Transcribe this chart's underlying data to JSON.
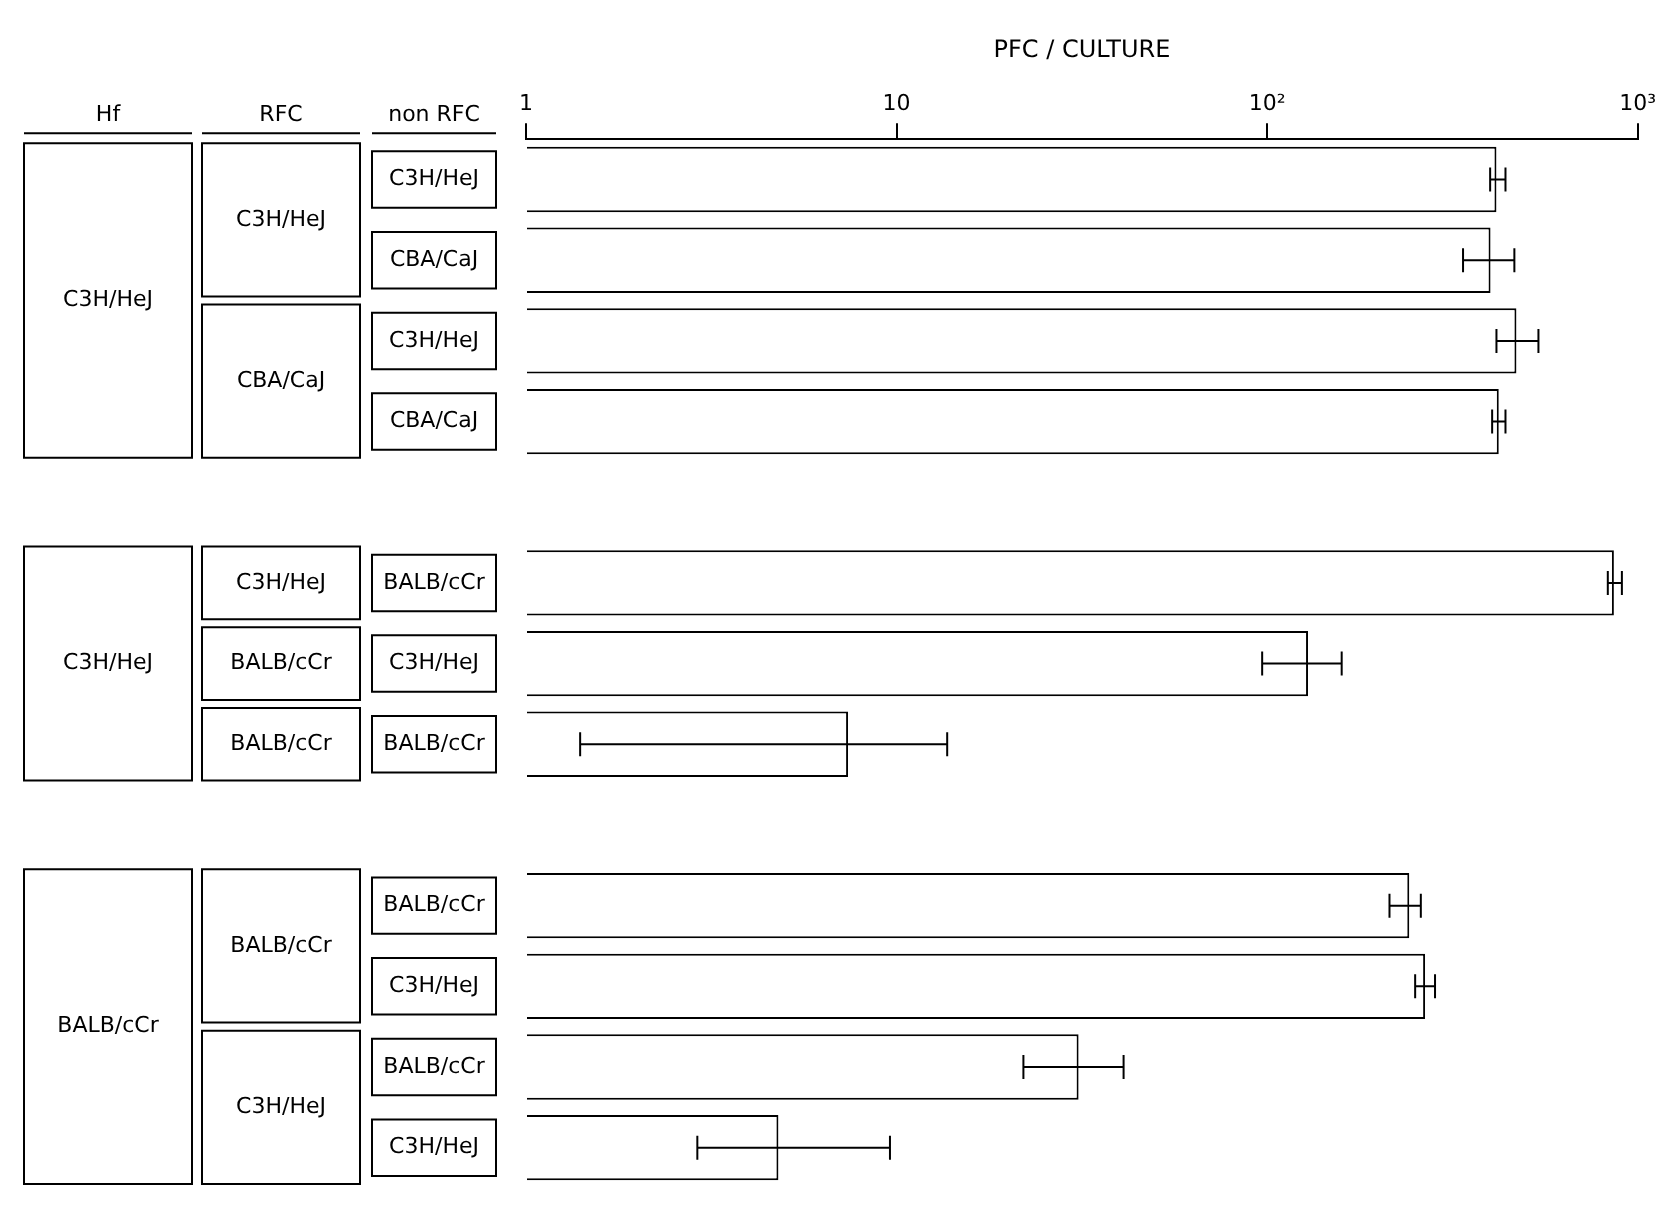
{
  "chart_data": {
    "type": "bar",
    "orientation": "horizontal",
    "title": "PFC / CULTURE",
    "categories": [
      "C3H/HeJ",
      "CBA/CaJ",
      "C3H/HeJ",
      "CBA/CaJ",
      null,
      "BALB/cCr",
      "C3H/HeJ",
      "BALB/cCr",
      null,
      "BALB/cCr",
      "C3H/HeJ",
      "BALB/cCr",
      "C3H/HeJ"
    ],
    "values": [
      416,
      401,
      471,
      422,
      null,
      863,
      129,
      7.4,
      null,
      242,
      267,
      31,
      4.8
    ],
    "errors": [
      [
        400,
        440
      ],
      [
        338,
        465
      ],
      [
        416,
        540
      ],
      [
        405,
        440
      ],
      null,
      [
        831,
        907
      ],
      [
        97,
        159
      ],
      [
        1.4,
        13.7
      ],
      null,
      [
        214,
        260
      ],
      [
        251,
        284
      ],
      [
        22,
        41
      ],
      [
        2.9,
        9.6
      ]
    ],
    "color": "#ffffff",
    "log": "x",
    "xlim": [
      1,
      1000
    ],
    "xticks": [
      1,
      10,
      {
        "value": 100,
        "label": "10²"
      },
      {
        "value": 1000,
        "label": "10³"
      }
    ],
    "grid": false,
    "legend": false,
    "annotations": [
      "Hf",
      "RFC",
      "non RFC",
      "C3H/HeJ",
      "C3H/HeJ",
      "BALB/cCr",
      "C3H/HeJ",
      "CBA/CaJ",
      "C3H/HeJ",
      "BALB/cCr",
      "BALB/cCr",
      "BALB/cCr",
      "C3H/HeJ"
    ]
  }
}
